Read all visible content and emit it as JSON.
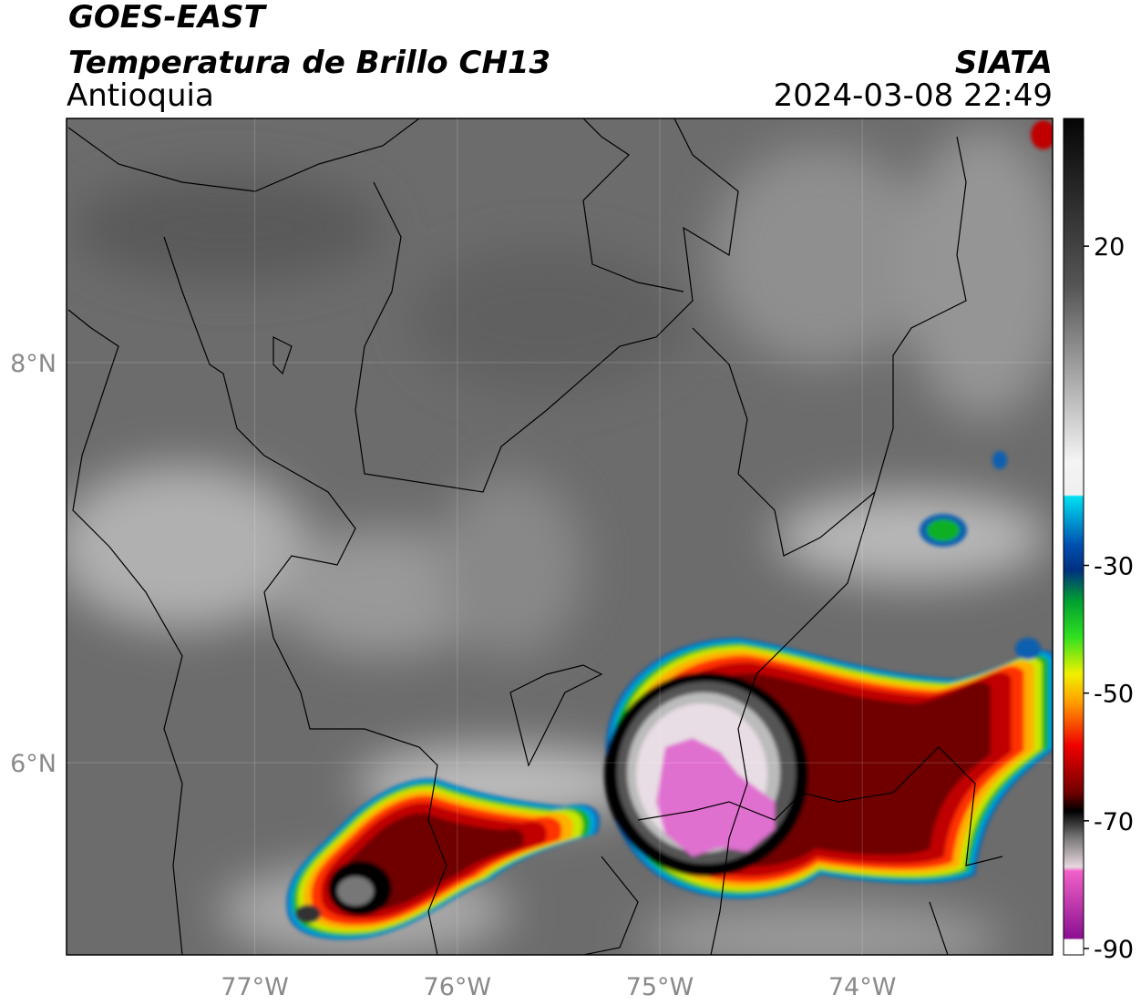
{
  "header": {
    "satellite": "GOES-EAST",
    "product": "Temperatura de Brillo CH13",
    "region": "Antioquia",
    "source": "SIATA",
    "datetime": "2024-03-08 22:49"
  },
  "map": {
    "lon_range": [
      -77.93,
      -73.06
    ],
    "lat_range": [
      5.04,
      9.22
    ],
    "lon_ticks": [
      {
        "value": -77,
        "label": "77°W"
      },
      {
        "value": -76,
        "label": "76°W"
      },
      {
        "value": -75,
        "label": "75°W"
      },
      {
        "value": -74,
        "label": "74°W"
      }
    ],
    "lat_ticks": [
      {
        "value": 8,
        "label": "8°N"
      },
      {
        "value": 6,
        "label": "6°N"
      }
    ]
  },
  "colorbar": {
    "range": [
      -91,
      40
    ],
    "ticks": [
      20,
      -30,
      -50,
      -70,
      -90
    ]
  }
}
